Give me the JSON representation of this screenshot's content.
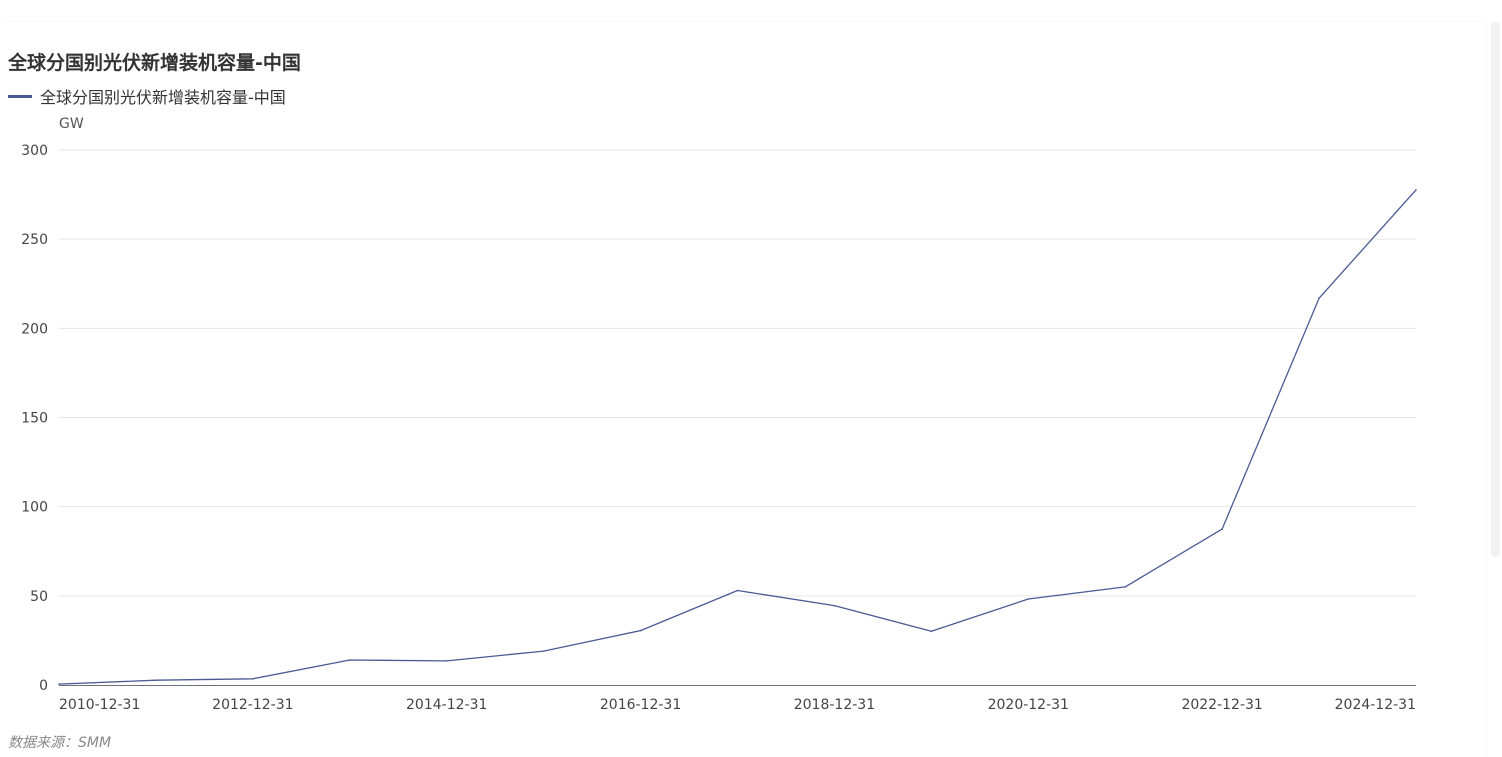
{
  "chart_data": {
    "type": "line",
    "title": "全球分国别光伏新增装机容量-中国",
    "ylabel": "GW",
    "xlabel": "",
    "source": "数据来源：SMM",
    "legend_placement": "top-left",
    "grid": true,
    "ylim": [
      0,
      300
    ],
    "y_ticks": [
      0,
      50,
      100,
      150,
      200,
      250,
      300
    ],
    "x_tick_labels": [
      "2010-12-31",
      "2012-12-31",
      "2014-12-31",
      "2016-12-31",
      "2018-12-31",
      "2020-12-31",
      "2022-12-31",
      "2024-12-31"
    ],
    "x": [
      "2010-12-31",
      "2011-12-31",
      "2012-12-31",
      "2013-12-31",
      "2014-12-31",
      "2015-12-31",
      "2016-12-31",
      "2017-12-31",
      "2018-12-31",
      "2019-12-31",
      "2020-12-31",
      "2021-12-31",
      "2022-12-31",
      "2023-12-31",
      "2024-12-31"
    ],
    "series": [
      {
        "name": "全球分国别光伏新增装机容量-中国",
        "color": "#4a5b94",
        "values": [
          0.5,
          2.7,
          3.5,
          14,
          13.5,
          19,
          30.5,
          53,
          44.5,
          30.1,
          48.2,
          55,
          87.4,
          216.9,
          277.6
        ]
      }
    ]
  }
}
